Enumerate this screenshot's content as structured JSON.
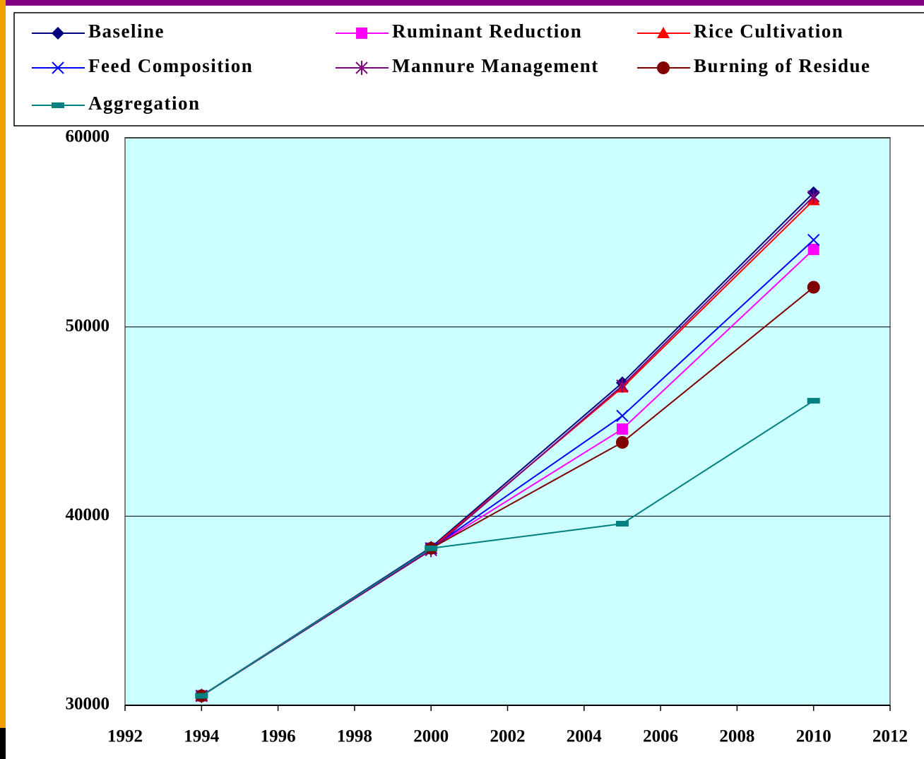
{
  "chart_data": {
    "type": "line",
    "x": [
      1994,
      2000,
      2005,
      2010
    ],
    "xlim": [
      1992,
      2012
    ],
    "xticks": [
      1992,
      1994,
      1996,
      1998,
      2000,
      2002,
      2004,
      2006,
      2008,
      2010,
      2012
    ],
    "ylim": [
      30000,
      60000
    ],
    "yticks": [
      30000,
      40000,
      50000,
      60000
    ],
    "grid": true,
    "legend": "top",
    "series": [
      {
        "name": "Baseline",
        "color": "#000080",
        "marker": "diamond",
        "values": [
          30500,
          38350,
          47050,
          57100
        ]
      },
      {
        "name": "Ruminant Reduction",
        "color": "#ff00ff",
        "marker": "square",
        "values": [
          30500,
          38300,
          44600,
          54100
        ]
      },
      {
        "name": "Rice Cultivation",
        "color": "#ff0000",
        "marker": "triangle",
        "values": [
          30500,
          38300,
          46800,
          56700
        ]
      },
      {
        "name": "Feed Composition",
        "color": "#0000ff",
        "marker": "x",
        "values": [
          30500,
          38300,
          45300,
          54600
        ]
      },
      {
        "name": "Mannure Management",
        "color": "#800080",
        "marker": "star",
        "values": [
          30500,
          38200,
          46900,
          56900
        ]
      },
      {
        "name": "Burning of Residue",
        "color": "#800000",
        "marker": "circle",
        "values": [
          30500,
          38300,
          43900,
          52100
        ]
      },
      {
        "name": "Aggregation",
        "color": "#008080",
        "marker": "dash",
        "values": [
          30500,
          38300,
          39600,
          46100
        ]
      }
    ]
  }
}
